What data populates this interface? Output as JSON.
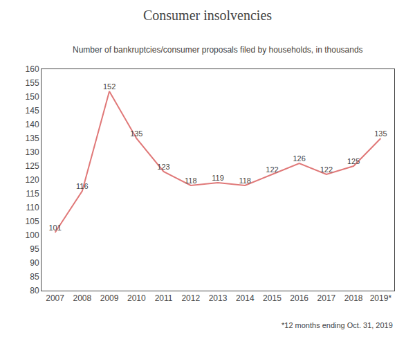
{
  "chart_data": {
    "type": "line",
    "title": "Consumer insolvencies",
    "subtitle": "Number of bankruptcies/consumer proposals filed by households, in thousands",
    "annotations": [
      "*12 months ending Oct. 31, 2019"
    ],
    "categories": [
      "2007",
      "2008",
      "2009",
      "2010",
      "2011",
      "2012",
      "2013",
      "2014",
      "2015",
      "2016",
      "2017",
      "2018",
      "2019*"
    ],
    "values": [
      101,
      116,
      152,
      135,
      123,
      118,
      119,
      118,
      122,
      126,
      122,
      125,
      135
    ],
    "color": "#e07878",
    "ylim": [
      80,
      160
    ],
    "yticks": [
      80,
      85,
      90,
      95,
      100,
      105,
      110,
      115,
      120,
      125,
      130,
      135,
      140,
      145,
      150,
      155,
      160
    ],
    "grid": false,
    "data_labels": true
  }
}
